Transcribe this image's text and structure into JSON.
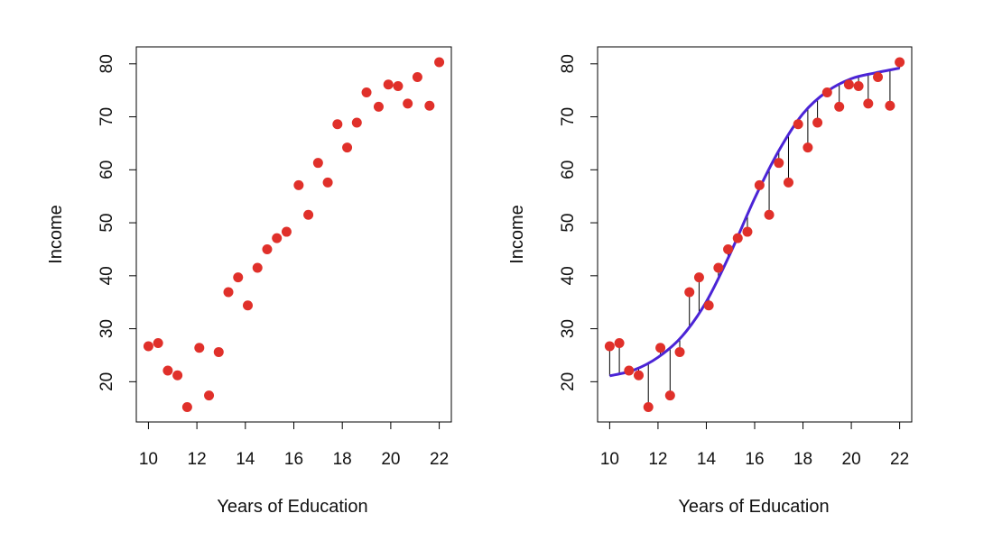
{
  "colors": {
    "point": "#e0302a",
    "curve": "#4b24d6",
    "residual": "#000000",
    "axis": "#000000"
  },
  "chart_data": [
    {
      "type": "scatter",
      "title": "",
      "xlabel": "Years of Education",
      "ylabel": "Income",
      "xlim": [
        9.5,
        22.5
      ],
      "ylim": [
        12.4,
        83.2
      ],
      "xticks": [
        "10",
        "12",
        "14",
        "16",
        "18",
        "20",
        "22"
      ],
      "yticks": [
        "20",
        "30",
        "40",
        "50",
        "60",
        "70",
        "80"
      ],
      "grid": false,
      "series": [
        {
          "x": [
            10,
            10.4,
            10.8,
            11.2,
            11.6,
            12.1,
            12.5,
            12.9,
            13.3,
            13.7,
            14.1,
            14.5,
            14.9,
            15.3,
            15.7,
            16.2,
            16.6,
            17.0,
            17.4,
            17.8,
            18.2,
            18.6,
            19.0,
            19.5,
            19.9,
            20.3,
            20.7,
            21.1,
            21.6,
            22.0
          ],
          "y": [
            26.7,
            27.3,
            22.1,
            21.2,
            15.2,
            26.4,
            17.4,
            25.6,
            36.9,
            39.7,
            34.4,
            41.5,
            45.0,
            47.1,
            48.3,
            57.1,
            51.5,
            61.3,
            57.6,
            68.6,
            64.2,
            68.9,
            74.6,
            71.9,
            76.1,
            75.8,
            72.5,
            77.5,
            72.1,
            80.3
          ]
        }
      ]
    },
    {
      "type": "scatter",
      "title": "",
      "xlabel": "Years of Education",
      "ylabel": "Income",
      "xlim": [
        9.5,
        22.5
      ],
      "ylim": [
        12.4,
        83.2
      ],
      "xticks": [
        "10",
        "12",
        "14",
        "16",
        "18",
        "20",
        "22"
      ],
      "yticks": [
        "20",
        "30",
        "40",
        "50",
        "60",
        "70",
        "80"
      ],
      "grid": false,
      "series": [
        {
          "x": [
            10,
            10.4,
            10.8,
            11.2,
            11.6,
            12.1,
            12.5,
            12.9,
            13.3,
            13.7,
            14.1,
            14.5,
            14.9,
            15.3,
            15.7,
            16.2,
            16.6,
            17.0,
            17.4,
            17.8,
            18.2,
            18.6,
            19.0,
            19.5,
            19.9,
            20.3,
            20.7,
            21.1,
            21.6,
            22.0
          ],
          "y": [
            26.7,
            27.3,
            22.1,
            21.2,
            15.2,
            26.4,
            17.4,
            25.6,
            36.9,
            39.7,
            34.4,
            41.5,
            45.0,
            47.1,
            48.3,
            57.1,
            51.5,
            61.3,
            57.6,
            68.6,
            64.2,
            68.9,
            74.6,
            71.9,
            76.1,
            75.8,
            72.5,
            77.5,
            72.1,
            80.3
          ]
        }
      ],
      "fitted_curve": {
        "x": [
          10,
          11,
          12,
          13,
          14,
          15,
          16,
          17,
          18,
          19,
          20,
          21,
          22
        ],
        "y": [
          21.1,
          22.2,
          24.6,
          28.6,
          35.1,
          44.3,
          54.6,
          63.6,
          70.6,
          74.8,
          77.2,
          78.3,
          79.2
        ]
      },
      "residual_lines": true
    }
  ]
}
